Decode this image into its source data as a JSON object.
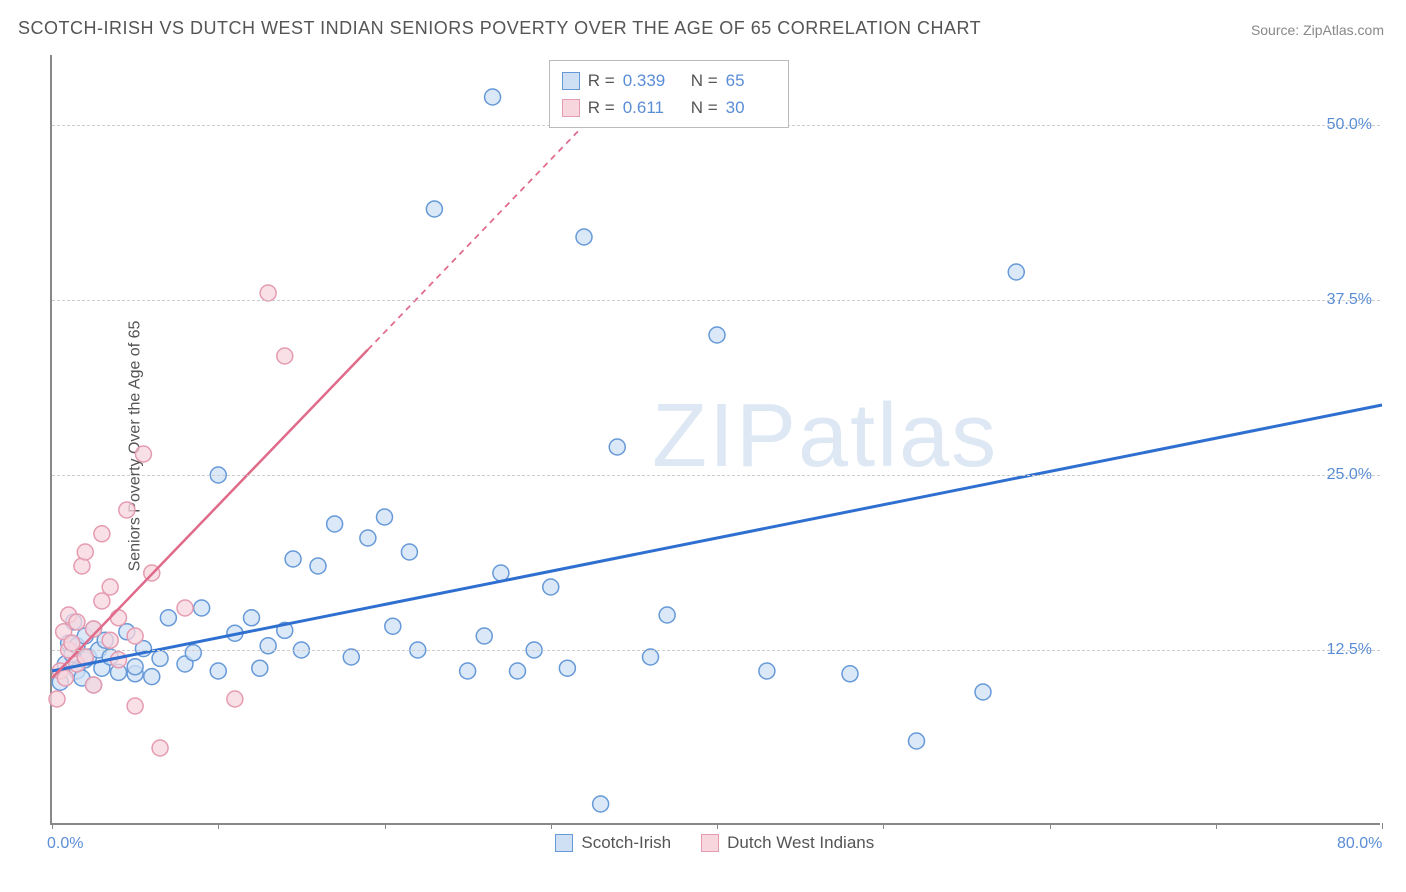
{
  "chart": {
    "type": "scatter",
    "title": "SCOTCH-IRISH VS DUTCH WEST INDIAN SENIORS POVERTY OVER THE AGE OF 65 CORRELATION CHART",
    "source": "Source: ZipAtlas.com",
    "ylabel": "Seniors Poverty Over the Age of 65",
    "watermark": "ZIPatlas",
    "background_color": "#ffffff",
    "grid_color": "#cccccc",
    "axis_color": "#888888",
    "tick_label_color": "#5a8dd6",
    "xlim": [
      0,
      80
    ],
    "ylim": [
      0,
      55
    ],
    "xticks": [
      0,
      10,
      20,
      30,
      40,
      50,
      60,
      70,
      80
    ],
    "xtick_labels": {
      "0": "0.0%",
      "80": "80.0%"
    },
    "yticks": [
      12.5,
      25.0,
      37.5,
      50.0
    ],
    "ytick_labels": [
      "12.5%",
      "25.0%",
      "37.5%",
      "50.0%"
    ],
    "stats_box": {
      "rows": [
        {
          "swatch_fill": "#cfe0f5",
          "swatch_border": "#6699d8",
          "r_label": "R =",
          "r": "0.339",
          "n_label": "N =",
          "n": "65"
        },
        {
          "swatch_fill": "#f7d6de",
          "swatch_border": "#e59bb0",
          "r_label": "R =",
          "r": "0.611",
          "n_label": "N =",
          "n": "30"
        }
      ]
    },
    "legend": {
      "items": [
        {
          "swatch_fill": "#cfe0f5",
          "swatch_border": "#6699d8",
          "label": "Scotch-Irish"
        },
        {
          "swatch_fill": "#f7d6de",
          "swatch_border": "#e59bb0",
          "label": "Dutch West Indians"
        }
      ]
    },
    "series": [
      {
        "name": "Scotch-Irish",
        "marker_fill": "#cfe0f5",
        "marker_border": "#6699d8",
        "marker_radius": 8,
        "trend": {
          "color": "#2e6fd0",
          "width": 3,
          "x1": 0,
          "y1": 11,
          "x2": 80,
          "y2": 30,
          "dash_after_x": null
        },
        "points": [
          [
            0.5,
            10.2
          ],
          [
            0.8,
            11.5
          ],
          [
            1.0,
            13.0
          ],
          [
            1.2,
            12.2
          ],
          [
            1.3,
            14.5
          ],
          [
            1.5,
            12.8
          ],
          [
            1.5,
            11.0
          ],
          [
            1.8,
            10.5
          ],
          [
            2.0,
            13.5
          ],
          [
            2.0,
            11.8
          ],
          [
            2.2,
            12.0
          ],
          [
            2.5,
            10.0
          ],
          [
            2.5,
            14.0
          ],
          [
            2.8,
            12.5
          ],
          [
            3.0,
            11.2
          ],
          [
            3.2,
            13.2
          ],
          [
            3.5,
            12.0
          ],
          [
            4.0,
            10.9
          ],
          [
            4.5,
            13.8
          ],
          [
            5.0,
            10.8
          ],
          [
            5.0,
            11.3
          ],
          [
            5.5,
            12.6
          ],
          [
            6.0,
            10.6
          ],
          [
            6.5,
            11.9
          ],
          [
            7.0,
            14.8
          ],
          [
            8.0,
            11.5
          ],
          [
            8.5,
            12.3
          ],
          [
            9.0,
            15.5
          ],
          [
            10.0,
            11.0
          ],
          [
            10.0,
            25.0
          ],
          [
            11.0,
            13.7
          ],
          [
            12.0,
            14.8
          ],
          [
            12.5,
            11.2
          ],
          [
            13.0,
            12.8
          ],
          [
            14.0,
            13.9
          ],
          [
            14.5,
            19.0
          ],
          [
            15.0,
            12.5
          ],
          [
            16.0,
            18.5
          ],
          [
            17.0,
            21.5
          ],
          [
            18.0,
            12.0
          ],
          [
            19.0,
            20.5
          ],
          [
            20.0,
            22.0
          ],
          [
            20.5,
            14.2
          ],
          [
            21.5,
            19.5
          ],
          [
            22.0,
            12.5
          ],
          [
            23.0,
            44.0
          ],
          [
            25.0,
            11.0
          ],
          [
            26.0,
            13.5
          ],
          [
            26.5,
            52.0
          ],
          [
            27.0,
            18.0
          ],
          [
            28.0,
            11.0
          ],
          [
            29.0,
            12.5
          ],
          [
            30.0,
            17.0
          ],
          [
            31.0,
            11.2
          ],
          [
            32.0,
            42.0
          ],
          [
            33.0,
            1.5
          ],
          [
            34.0,
            27.0
          ],
          [
            36.0,
            12.0
          ],
          [
            37.0,
            15.0
          ],
          [
            40.0,
            35.0
          ],
          [
            43.0,
            11.0
          ],
          [
            48.0,
            10.8
          ],
          [
            52.0,
            6.0
          ],
          [
            56.0,
            9.5
          ],
          [
            58.0,
            39.5
          ]
        ]
      },
      {
        "name": "Dutch West Indians",
        "marker_fill": "#f7d6de",
        "marker_border": "#e59bb0",
        "marker_radius": 8,
        "trend": {
          "color": "#e06a8a",
          "width": 2.5,
          "x1": 0,
          "y1": 10.5,
          "x2": 32,
          "y2": 50,
          "dash_after_x": 19
        },
        "points": [
          [
            0.3,
            9.0
          ],
          [
            0.5,
            11.0
          ],
          [
            0.7,
            13.8
          ],
          [
            0.8,
            10.5
          ],
          [
            1.0,
            12.5
          ],
          [
            1.0,
            15.0
          ],
          [
            1.2,
            13.0
          ],
          [
            1.5,
            14.5
          ],
          [
            1.5,
            11.5
          ],
          [
            1.8,
            18.5
          ],
          [
            2.0,
            12.0
          ],
          [
            2.0,
            19.5
          ],
          [
            2.5,
            14.0
          ],
          [
            2.5,
            10.0
          ],
          [
            3.0,
            16.0
          ],
          [
            3.0,
            20.8
          ],
          [
            3.5,
            13.2
          ],
          [
            3.5,
            17.0
          ],
          [
            4.0,
            11.8
          ],
          [
            4.0,
            14.8
          ],
          [
            4.5,
            22.5
          ],
          [
            5.0,
            13.5
          ],
          [
            5.0,
            8.5
          ],
          [
            5.5,
            26.5
          ],
          [
            6.0,
            18.0
          ],
          [
            6.5,
            5.5
          ],
          [
            8.0,
            15.5
          ],
          [
            11.0,
            9.0
          ],
          [
            13.0,
            38.0
          ],
          [
            14.0,
            33.5
          ]
        ]
      }
    ]
  }
}
